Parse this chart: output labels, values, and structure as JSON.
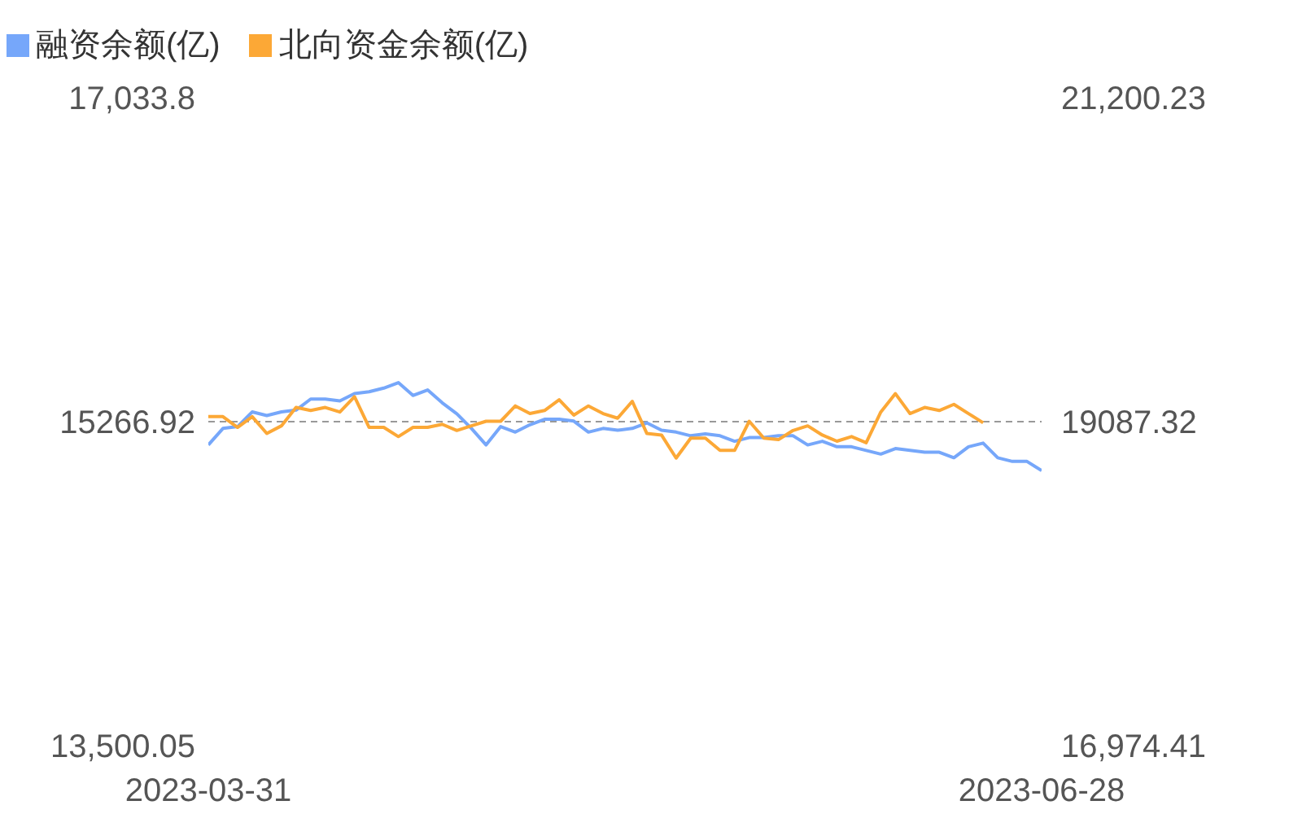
{
  "chart_data": {
    "type": "line",
    "categories": [
      "2023-03-31",
      null,
      null,
      null,
      null,
      null,
      null,
      null,
      null,
      null,
      null,
      null,
      null,
      null,
      null,
      null,
      null,
      null,
      null,
      null,
      null,
      null,
      null,
      null,
      null,
      null,
      null,
      null,
      null,
      null,
      null,
      null,
      null,
      null,
      null,
      null,
      null,
      null,
      null,
      null,
      null,
      null,
      null,
      null,
      null,
      null,
      null,
      null,
      null,
      null,
      null,
      null,
      null,
      null,
      null,
      null,
      null,
      "2023-06-28"
    ],
    "series": [
      {
        "name": "融资余额(亿)",
        "color": "#76a7fa",
        "values": [
          15140,
          15230,
          15240,
          15320,
          15300,
          15320,
          15330,
          15390,
          15390,
          15380,
          15420,
          15430,
          15450,
          15480,
          15410,
          15440,
          15370,
          15310,
          15230,
          15140,
          15240,
          15210,
          15250,
          15280,
          15280,
          15270,
          15210,
          15230,
          15220,
          15230,
          15260,
          15220,
          15210,
          15190,
          15200,
          15190,
          15160,
          15180,
          15180,
          15190,
          15190,
          15140,
          15160,
          15130,
          15130,
          15110,
          15090,
          15120,
          15110,
          15100,
          15100,
          15070,
          15130,
          15150,
          15070,
          15050,
          15050,
          15000
        ]
      },
      {
        "name": "北向资金余额(亿)",
        "color": "#fca836",
        "axis": "y2",
        "values": [
          19120,
          19120,
          19050,
          19120,
          19010,
          19060,
          19180,
          19160,
          19180,
          19150,
          19250,
          19050,
          19050,
          18990,
          19050,
          19050,
          19070,
          19030,
          19060,
          19090,
          19090,
          19190,
          19140,
          19160,
          19230,
          19130,
          19190,
          19140,
          19110,
          19220,
          19010,
          19000,
          18850,
          18980,
          18980,
          18900,
          18900,
          19090,
          18980,
          18970,
          19030,
          19060,
          19000,
          18960,
          18990,
          18950,
          19150,
          19270,
          19140,
          19180,
          19160,
          19200,
          19140,
          19080,
          null,
          null,
          null,
          null
        ]
      }
    ],
    "ylim": [
      13500.05,
      17033.8
    ],
    "yticks": [
      {
        "value": 13500.05,
        "label": "13,500.05"
      },
      {
        "value": 15266.92,
        "label": "15266.92"
      },
      {
        "value": 17033.8,
        "label": "17,033.8"
      }
    ],
    "y2lim": [
      16974.41,
      21200.23
    ],
    "y2ticks": [
      {
        "value": 16974.41,
        "label": "16,974.41"
      },
      {
        "value": 19087.32,
        "label": "19087.32"
      },
      {
        "value": 21200.23,
        "label": "21,200.23"
      }
    ],
    "ref_lines": [
      {
        "axis": "y",
        "value": 15266.92,
        "color": "#999999",
        "line_style": "dashed"
      }
    ],
    "legend": "top left",
    "marker": "none",
    "line_style": "solid"
  }
}
